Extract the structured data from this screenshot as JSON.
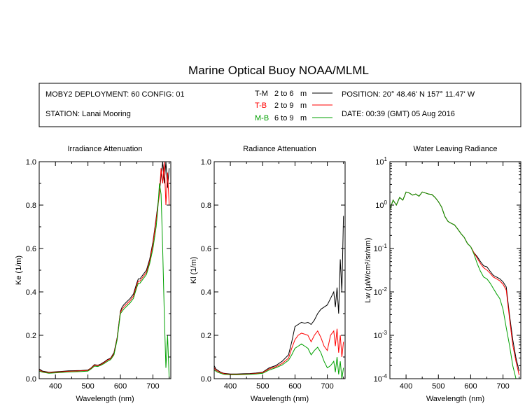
{
  "title": "Marine Optical Buoy NOAA/MLML",
  "info": {
    "deployment": "MOBY2 DEPLOYMENT: 60 CONFIG: 01",
    "station": "STATION: Lanai Mooring",
    "position": "POSITION: 20° 48.46' N   157° 11.47' W",
    "date": "DATE: 00:39 (GMT) 05 Aug 2016"
  },
  "legend": [
    {
      "code": "T-M",
      "range": "2 to 6",
      "unit": "m",
      "color": "#000000"
    },
    {
      "code": "T-B",
      "range": "2 to 9",
      "unit": "m",
      "color": "#ff0000"
    },
    {
      "code": "M-B",
      "range": "6 to 9",
      "unit": "m",
      "color": "#00a000"
    }
  ],
  "chart_data": [
    {
      "type": "line",
      "title": "Irradiance Attenuation",
      "xlabel": "Wavelength (nm)",
      "ylabel": "Ke  (1/m)",
      "xlim": [
        350,
        755
      ],
      "ylim": [
        0,
        1
      ],
      "xticks": [
        400,
        500,
        600,
        700
      ],
      "xticklabels": [
        "400",
        "500",
        "600",
        "700"
      ],
      "yticks": [
        0,
        0.2,
        0.4,
        0.6,
        0.8,
        1.0
      ],
      "yticklabels": [
        "0.0",
        "0.2",
        "0.4",
        "0.6",
        "0.8",
        "1.0"
      ],
      "series": [
        {
          "name": "T-M",
          "color": "#000000",
          "x": [
            350,
            360,
            380,
            400,
            420,
            440,
            460,
            480,
            500,
            510,
            520,
            530,
            540,
            550,
            560,
            570,
            580,
            590,
            600,
            605,
            610,
            620,
            630,
            640,
            650,
            655,
            660,
            670,
            680,
            690,
            700,
            710,
            715,
            720,
            725,
            730,
            735,
            740,
            745,
            750
          ],
          "y": [
            0.045,
            0.035,
            0.03,
            0.032,
            0.034,
            0.036,
            0.037,
            0.038,
            0.04,
            0.05,
            0.065,
            0.062,
            0.068,
            0.077,
            0.088,
            0.095,
            0.12,
            0.19,
            0.31,
            0.33,
            0.34,
            0.355,
            0.37,
            0.39,
            0.44,
            0.46,
            0.46,
            0.48,
            0.5,
            0.55,
            0.63,
            0.74,
            0.8,
            0.86,
            0.93,
            1.0,
            0.9,
            1.0,
            0.88,
            0.97
          ]
        },
        {
          "name": "T-B",
          "color": "#ff0000",
          "x": [
            350,
            360,
            380,
            400,
            420,
            440,
            460,
            480,
            500,
            510,
            520,
            530,
            540,
            550,
            560,
            570,
            580,
            590,
            600,
            605,
            610,
            620,
            630,
            640,
            650,
            655,
            660,
            670,
            680,
            690,
            700,
            710,
            715,
            720,
            725,
            730,
            735,
            740,
            745,
            750
          ],
          "y": [
            0.04,
            0.032,
            0.028,
            0.03,
            0.032,
            0.034,
            0.035,
            0.036,
            0.038,
            0.048,
            0.062,
            0.06,
            0.065,
            0.074,
            0.085,
            0.092,
            0.115,
            0.185,
            0.305,
            0.32,
            0.33,
            0.345,
            0.36,
            0.38,
            0.43,
            0.45,
            0.45,
            0.47,
            0.49,
            0.54,
            0.62,
            0.73,
            0.79,
            0.85,
            0.97,
            0.9,
            1.0,
            0.8,
            0.95,
            0.8
          ]
        },
        {
          "name": "M-B",
          "color": "#00a000",
          "x": [
            350,
            360,
            380,
            400,
            420,
            440,
            460,
            480,
            500,
            510,
            520,
            530,
            540,
            550,
            560,
            570,
            580,
            590,
            600,
            605,
            610,
            620,
            630,
            640,
            650,
            655,
            660,
            670,
            680,
            690,
            700,
            710,
            715,
            720,
            725,
            730,
            735,
            740,
            745,
            750
          ],
          "y": [
            0.035,
            0.03,
            0.025,
            0.027,
            0.029,
            0.031,
            0.032,
            0.033,
            0.035,
            0.045,
            0.058,
            0.056,
            0.062,
            0.07,
            0.08,
            0.088,
            0.11,
            0.18,
            0.3,
            0.31,
            0.32,
            0.335,
            0.35,
            0.37,
            0.42,
            0.44,
            0.44,
            0.46,
            0.48,
            0.53,
            0.6,
            0.7,
            0.78,
            0.9,
            0.85,
            0.6,
            0.3,
            0.05,
            0.2,
            0.0
          ]
        }
      ]
    },
    {
      "type": "line",
      "title": "Radiance Attenuation",
      "xlabel": "Wavelength (nm)",
      "ylabel": "Kl  (1/m)",
      "xlim": [
        350,
        755
      ],
      "ylim": [
        0,
        1
      ],
      "xticks": [
        400,
        500,
        600,
        700
      ],
      "xticklabels": [
        "400",
        "500",
        "600",
        "700"
      ],
      "yticks": [
        0,
        0.2,
        0.4,
        0.6,
        0.8,
        1.0
      ],
      "yticklabels": [
        "0.0",
        "0.2",
        "0.4",
        "0.6",
        "0.8",
        "1.0"
      ],
      "series": [
        {
          "name": "T-M",
          "color": "#000000",
          "x": [
            350,
            355,
            360,
            370,
            380,
            400,
            420,
            440,
            460,
            480,
            500,
            520,
            540,
            560,
            580,
            590,
            600,
            610,
            620,
            630,
            640,
            650,
            660,
            670,
            680,
            690,
            700,
            710,
            720,
            725,
            730,
            735,
            740,
            745,
            750
          ],
          "y": [
            0.06,
            0.045,
            0.04,
            0.03,
            0.025,
            0.022,
            0.022,
            0.023,
            0.024,
            0.026,
            0.03,
            0.05,
            0.06,
            0.08,
            0.11,
            0.17,
            0.24,
            0.25,
            0.26,
            0.255,
            0.26,
            0.25,
            0.27,
            0.3,
            0.32,
            0.33,
            0.34,
            0.37,
            0.4,
            0.33,
            0.42,
            0.3,
            0.55,
            0.4,
            0.75
          ]
        },
        {
          "name": "T-B",
          "color": "#ff0000",
          "x": [
            350,
            355,
            360,
            370,
            380,
            400,
            420,
            440,
            460,
            480,
            500,
            520,
            540,
            560,
            580,
            590,
            600,
            610,
            620,
            630,
            640,
            650,
            660,
            670,
            680,
            690,
            700,
            710,
            720,
            725,
            730,
            735,
            740,
            745,
            750
          ],
          "y": [
            0.05,
            0.04,
            0.035,
            0.028,
            0.023,
            0.02,
            0.02,
            0.021,
            0.022,
            0.024,
            0.028,
            0.045,
            0.055,
            0.07,
            0.095,
            0.14,
            0.18,
            0.2,
            0.21,
            0.205,
            0.2,
            0.17,
            0.2,
            0.22,
            0.19,
            0.15,
            0.13,
            0.2,
            0.22,
            0.15,
            0.23,
            0.12,
            0.2,
            0.1,
            0.17
          ]
        },
        {
          "name": "M-B",
          "color": "#00a000",
          "x": [
            350,
            355,
            360,
            370,
            380,
            400,
            420,
            440,
            460,
            480,
            500,
            520,
            540,
            560,
            580,
            590,
            600,
            610,
            620,
            630,
            640,
            650,
            660,
            670,
            680,
            690,
            700,
            710,
            720,
            725,
            730,
            735,
            740,
            745,
            750
          ],
          "y": [
            0.04,
            0.035,
            0.03,
            0.025,
            0.02,
            0.018,
            0.018,
            0.019,
            0.02,
            0.022,
            0.025,
            0.04,
            0.05,
            0.063,
            0.085,
            0.11,
            0.14,
            0.15,
            0.16,
            0.15,
            0.14,
            0.11,
            0.13,
            0.145,
            0.12,
            0.08,
            0.05,
            0.06,
            0.08,
            0.03,
            0.1,
            0.02,
            0.08,
            0.0,
            0.05
          ]
        }
      ]
    },
    {
      "type": "line",
      "title": "Water Leaving Radiance",
      "xlabel": "Wavelength (nm)",
      "ylabel": "Lw  (µW/cm²/sr/nm)",
      "yscale": "log",
      "xlim": [
        350,
        755
      ],
      "ylim": [
        0.0001,
        10
      ],
      "xticks": [
        400,
        500,
        600,
        700
      ],
      "xticklabels": [
        "400",
        "500",
        "600",
        "700"
      ],
      "yticks": [
        0.0001,
        0.001,
        0.01,
        0.1,
        1,
        10
      ],
      "yticklabels": [
        [
          "10",
          "-4"
        ],
        [
          "10",
          "-3"
        ],
        [
          "10",
          "-2"
        ],
        [
          "10",
          "-1"
        ],
        [
          "10",
          "0"
        ],
        [
          "10",
          "1"
        ]
      ],
      "series": [
        {
          "name": "T-M",
          "color": "#000000",
          "x": [
            350,
            360,
            370,
            380,
            390,
            400,
            410,
            420,
            430,
            440,
            450,
            460,
            470,
            480,
            490,
            500,
            510,
            520,
            530,
            540,
            550,
            560,
            570,
            580,
            590,
            600,
            610,
            620,
            630,
            640,
            650,
            660,
            670,
            680,
            690,
            700,
            710,
            720,
            730,
            740,
            750
          ],
          "y": [
            0.8,
            1.3,
            1.0,
            1.5,
            1.3,
            2.0,
            1.9,
            1.7,
            1.8,
            1.6,
            2.0,
            1.9,
            1.8,
            1.75,
            1.5,
            1.2,
            0.9,
            0.55,
            0.42,
            0.38,
            0.35,
            0.28,
            0.22,
            0.18,
            0.13,
            0.11,
            0.08,
            0.065,
            0.05,
            0.04,
            0.038,
            0.03,
            0.024,
            0.022,
            0.02,
            0.017,
            0.013,
            0.003,
            0.0008,
            0.0003,
            0.00015
          ]
        },
        {
          "name": "T-B",
          "color": "#ff0000",
          "x": [
            350,
            360,
            370,
            380,
            390,
            400,
            410,
            420,
            430,
            440,
            450,
            460,
            470,
            480,
            490,
            500,
            510,
            520,
            530,
            540,
            550,
            560,
            570,
            580,
            590,
            600,
            610,
            620,
            630,
            640,
            650,
            660,
            670,
            680,
            690,
            700,
            710,
            720,
            730,
            740,
            750
          ],
          "y": [
            0.8,
            1.3,
            1.0,
            1.5,
            1.3,
            2.0,
            1.9,
            1.7,
            1.8,
            1.6,
            2.0,
            1.9,
            1.8,
            1.75,
            1.5,
            1.2,
            0.9,
            0.55,
            0.42,
            0.38,
            0.35,
            0.28,
            0.22,
            0.18,
            0.13,
            0.11,
            0.08,
            0.06,
            0.045,
            0.036,
            0.032,
            0.027,
            0.022,
            0.02,
            0.018,
            0.015,
            0.011,
            0.0025,
            0.0006,
            0.00025,
            0.00012
          ]
        },
        {
          "name": "M-B",
          "color": "#00a000",
          "x": [
            350,
            360,
            370,
            380,
            390,
            400,
            410,
            420,
            430,
            440,
            450,
            460,
            470,
            480,
            490,
            500,
            510,
            520,
            530,
            540,
            550,
            560,
            570,
            580,
            590,
            600,
            610,
            620,
            630,
            640,
            650,
            660,
            670,
            680,
            690,
            700,
            710,
            720,
            730,
            740,
            750
          ],
          "y": [
            0.8,
            1.3,
            1.0,
            1.5,
            1.3,
            2.0,
            1.9,
            1.7,
            1.8,
            1.6,
            2.0,
            1.9,
            1.8,
            1.75,
            1.5,
            1.2,
            0.9,
            0.55,
            0.42,
            0.38,
            0.35,
            0.28,
            0.22,
            0.18,
            0.13,
            0.11,
            0.075,
            0.045,
            0.03,
            0.022,
            0.02,
            0.016,
            0.012,
            0.009,
            0.007,
            0.004,
            0.0015,
            0.0006,
            0.0002,
            0.0001,
            0.0001
          ]
        }
      ]
    }
  ]
}
